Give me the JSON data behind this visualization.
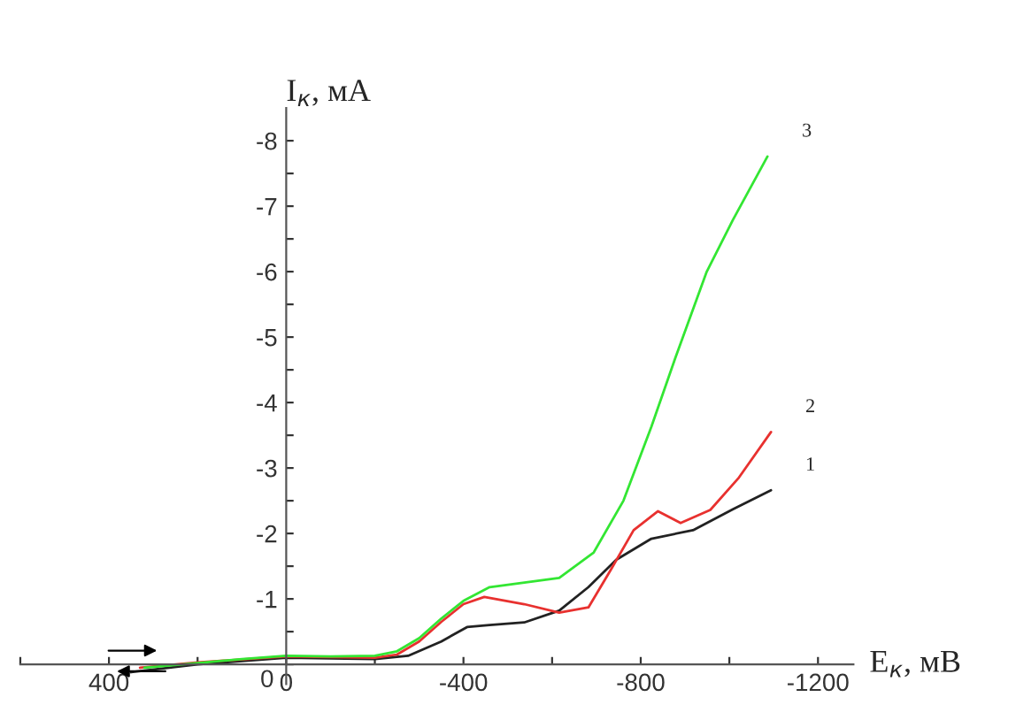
{
  "chart_data": {
    "type": "line",
    "xlabel": "E$_{к}$, мВ",
    "ylabel": "I$_{к}$, мА",
    "xlim": [
      600,
      -1280
    ],
    "ylim": [
      0.3,
      -8.5
    ],
    "xticks": [
      {
        "value": 600,
        "label": null
      },
      400,
      {
        "value": 200,
        "label": null
      },
      0,
      {
        "value": -200,
        "label": null
      },
      -400,
      {
        "value": -600,
        "label": null
      },
      -800,
      {
        "value": -1000,
        "label": null
      },
      -1200
    ],
    "yticks": [
      0,
      {
        "value": -0.5,
        "label": null
      },
      -1,
      {
        "value": -1.5,
        "label": null
      },
      -2,
      {
        "value": -2.5,
        "label": null
      },
      -3,
      {
        "value": -3.5,
        "label": null
      },
      -4,
      {
        "value": -4.5,
        "label": null
      },
      -5,
      {
        "value": -5.5,
        "label": null
      },
      -6,
      {
        "value": -6.5,
        "label": null
      },
      -7,
      {
        "value": -7.5,
        "label": null
      },
      -8
    ],
    "grid": false,
    "legend": false,
    "marker": "none",
    "line_style": "solid",
    "series": [
      {
        "name": "1",
        "color": "#222222",
        "x": [
          350,
          200,
          0,
          -200,
          -275,
          -350,
          -408,
          -459,
          -537,
          -616,
          -682,
          -745,
          -824,
          -918,
          -1008,
          -1094
        ],
        "values": [
          0.12,
          0.0,
          -0.1,
          -0.08,
          -0.13,
          -0.35,
          -0.57,
          -0.6,
          -0.64,
          -0.82,
          -1.18,
          -1.6,
          -1.92,
          -2.05,
          -2.37,
          -2.66
        ]
      },
      {
        "name": "2",
        "color": "#e8312f",
        "x": [
          330,
          200,
          0,
          -200,
          -250,
          -300,
          -350,
          -400,
          -447,
          -537,
          -616,
          -682,
          -733,
          -784,
          -839,
          -890,
          -957,
          -1020,
          -1094
        ],
        "values": [
          0.05,
          -0.03,
          -0.12,
          -0.1,
          -0.15,
          -0.35,
          -0.65,
          -0.92,
          -1.03,
          -0.92,
          -0.79,
          -0.87,
          -1.45,
          -2.05,
          -2.34,
          -2.16,
          -2.36,
          -2.84,
          -3.55
        ]
      },
      {
        "name": "3",
        "color": "#33e633",
        "x": [
          320,
          200,
          100,
          0,
          -100,
          -200,
          -250,
          -300,
          -350,
          -400,
          -459,
          -616,
          -694,
          -761,
          -824,
          -878,
          -949,
          -1008,
          -1086
        ],
        "values": [
          0.05,
          -0.02,
          -0.08,
          -0.13,
          -0.12,
          -0.13,
          -0.2,
          -0.4,
          -0.7,
          -0.97,
          -1.18,
          -1.32,
          -1.71,
          -2.5,
          -3.63,
          -4.68,
          -6.0,
          -6.79,
          -7.76
        ]
      }
    ]
  }
}
